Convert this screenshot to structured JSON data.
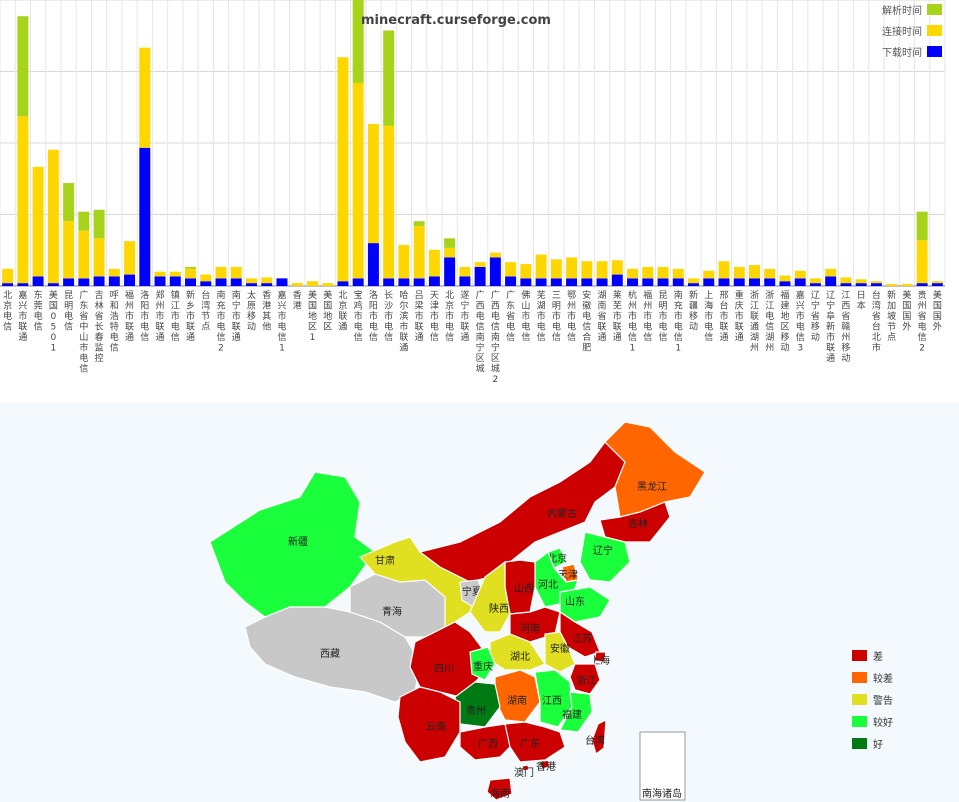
{
  "chart_data": [
    {
      "type": "bar",
      "stacked": true,
      "title": "minecraft.curseforge.com",
      "legend_position": "top-right",
      "grid": true,
      "ylim": [
        0,
        300
      ],
      "categories": [
        "北京电信",
        "嘉兴市联通",
        "东莞电信",
        "美国0501",
        "昆明电信",
        "广东省中山市电信",
        "吉林省长春监控",
        "呼和浩特电信",
        "福州市联通",
        "洛阳市电信",
        "郑州市联通",
        "镇江市电信",
        "新乡市联通",
        "台湾节点",
        "南充市电信2",
        "南宁市联通",
        "太原移动",
        "香港其他",
        "嘉兴市电信1",
        "香港",
        "美国地区1",
        "美国地区",
        "北京联通",
        "宝鸡市电信",
        "洛阳市电信",
        "长沙市电信",
        "哈尔滨市联通",
        "吕梁市联通",
        "天津市电信",
        "北京市电信",
        "遂宁市联通",
        "广西电信南宁区城",
        "广西电信南宁区城2",
        "广东省电信",
        "佛山市电信",
        "芜湖市电信",
        "三明市电信",
        "鄂州市电信",
        "安徽电信合肥",
        "湖南省联通",
        "莱芜市联通",
        "杭州市电信1",
        "福州市电信",
        "昆明市电信",
        "南充市电信1",
        "新疆移动",
        "上海市电信",
        "邢台市联通",
        "重庆市联通",
        "浙江联通湖州",
        "浙江电信湖州",
        "福建地区移动",
        "嘉兴市电信3",
        "辽宁省移动",
        "辽宁阜新市联通",
        "江西省赣州移动",
        "日本",
        "台湾省台北市",
        "新加坡节点",
        "美国国外",
        "贵州省电信2",
        "美国国外"
      ],
      "series": [
        {
          "name": "下载时间",
          "color": "#0000ff",
          "values": [
            3,
            3,
            10,
            3,
            8,
            8,
            10,
            10,
            12,
            145,
            10,
            10,
            8,
            5,
            8,
            8,
            3,
            3,
            8,
            0,
            0,
            0,
            5,
            8,
            45,
            8,
            8,
            8,
            10,
            30,
            10,
            20,
            30,
            10,
            8,
            8,
            8,
            8,
            8,
            8,
            12,
            8,
            8,
            8,
            8,
            3,
            8,
            8,
            8,
            8,
            8,
            5,
            8,
            3,
            10,
            3,
            3,
            3,
            0,
            0,
            3,
            3
          ],
          "label_values": []
        },
        {
          "name": "连接时间",
          "color": "#ffd700",
          "values": [
            15,
            175,
            115,
            140,
            60,
            50,
            40,
            8,
            35,
            105,
            5,
            5,
            10,
            7,
            12,
            12,
            5,
            6,
            0,
            3,
            5,
            3,
            235,
            205,
            125,
            160,
            35,
            55,
            28,
            10,
            10,
            5,
            5,
            15,
            15,
            25,
            20,
            22,
            18,
            18,
            15,
            10,
            12,
            12,
            10,
            5,
            8,
            18,
            12,
            14,
            10,
            6,
            8,
            5,
            8,
            6,
            4,
            2,
            2,
            2,
            45,
            2
          ],
          "label_values": []
        },
        {
          "name": "解析时间",
          "color": "#a6d41a",
          "values": [
            0,
            105,
            0,
            0,
            40,
            20,
            30,
            0,
            0,
            0,
            0,
            0,
            2,
            0,
            0,
            0,
            0,
            0,
            0,
            0,
            0,
            0,
            0,
            100,
            0,
            100,
            0,
            5,
            0,
            10,
            0,
            0,
            0,
            0,
            0,
            0,
            0,
            0,
            0,
            0,
            0,
            0,
            0,
            0,
            0,
            0,
            0,
            0,
            0,
            0,
            0,
            0,
            0,
            0,
            0,
            0,
            0,
            0,
            0,
            0,
            30,
            0
          ]
        }
      ]
    },
    {
      "type": "map",
      "legend": [
        {
          "label": "差",
          "color": "#cc0000"
        },
        {
          "label": "较差",
          "color": "#ff6600"
        },
        {
          "label": "警告",
          "color": "#e0e020"
        },
        {
          "label": "较好",
          "color": "#1aff3c"
        },
        {
          "label": "好",
          "color": "#007a12"
        }
      ],
      "regions": [
        {
          "name": "新疆",
          "status": "较好"
        },
        {
          "name": "西藏",
          "status": "无数据"
        },
        {
          "name": "青海",
          "status": "无数据"
        },
        {
          "name": "甘肃",
          "status": "警告"
        },
        {
          "name": "内蒙古",
          "status": "差"
        },
        {
          "name": "黑龙江",
          "status": "较差"
        },
        {
          "name": "吉林",
          "status": "差"
        },
        {
          "name": "辽宁",
          "status": "较好"
        },
        {
          "name": "北京",
          "status": "较好"
        },
        {
          "name": "天津",
          "status": "较差"
        },
        {
          "name": "河北",
          "status": "较好"
        },
        {
          "name": "山东",
          "status": "较好"
        },
        {
          "name": "山西",
          "status": "差"
        },
        {
          "name": "宁夏",
          "status": "无数据"
        },
        {
          "name": "陕西",
          "status": "警告"
        },
        {
          "name": "河南",
          "status": "差"
        },
        {
          "name": "江苏",
          "status": "差"
        },
        {
          "name": "安徽",
          "status": "警告"
        },
        {
          "name": "上海",
          "status": "差"
        },
        {
          "name": "湖北",
          "status": "警告"
        },
        {
          "name": "四川",
          "status": "差"
        },
        {
          "name": "重庆",
          "status": "较好"
        },
        {
          "name": "浙江",
          "status": "差"
        },
        {
          "name": "湖南",
          "status": "较差"
        },
        {
          "name": "江西",
          "status": "较好"
        },
        {
          "name": "福建",
          "status": "较好"
        },
        {
          "name": "贵州",
          "status": "好"
        },
        {
          "name": "云南",
          "status": "差"
        },
        {
          "name": "广西",
          "status": "差"
        },
        {
          "name": "广东",
          "status": "差"
        },
        {
          "name": "台湾",
          "status": "差"
        },
        {
          "name": "香港",
          "status": "差"
        },
        {
          "name": "澳门",
          "status": "差"
        },
        {
          "name": "海南",
          "status": "差"
        },
        {
          "name": "南海诸岛",
          "status": "无数据"
        }
      ]
    }
  ]
}
